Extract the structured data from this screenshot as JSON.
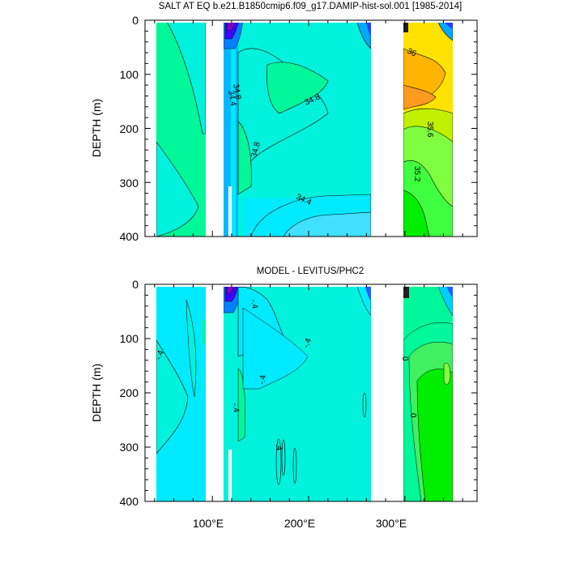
{
  "panels": [
    {
      "title": "SALT AT EQ b.e21.B1850cmip6.f09_g17.DAMIP-hist-sol.001 [1985-2014]",
      "ylabel": "DEPTH (m)"
    },
    {
      "title": "MODEL - LEVITUS/PHC2",
      "ylabel": "DEPTH (m)"
    }
  ],
  "chart_data": [
    {
      "type": "heatmap",
      "title": "SALT AT EQ b.e21.B1850cmip6.f09_g17.DAMIP-hist-sol.001 [1985-2014]",
      "xlabel": "",
      "ylabel": "DEPTH (m)",
      "xlim": [
        30,
        375
      ],
      "ylim": [
        400,
        0
      ],
      "x_ticks": [
        "100°E",
        "200°E",
        "300°E"
      ],
      "y_ticks": [
        "0",
        "100",
        "200",
        "300",
        "400"
      ],
      "contour_labels": [
        "34.4",
        "34.8",
        "34.8",
        "34.8",
        "34.4",
        "36",
        "35.6",
        "35.2"
      ],
      "colors": {
        "background": "#00f2dc",
        "green": "#00f79a",
        "bright_green": "#00ee00",
        "light_green": "#80ff40",
        "cyan": "#00eaff",
        "blue": "#00a8ff",
        "yellow": "#ffe200",
        "orange": "#ffb400",
        "purple": "#8000c8"
      }
    },
    {
      "type": "heatmap",
      "title": "MODEL - LEVITUS/PHC2",
      "xlabel": "",
      "ylabel": "DEPTH (m)",
      "xlim": [
        30,
        375
      ],
      "ylim": [
        400,
        0
      ],
      "x_ticks": [
        "100°E",
        "200°E",
        "300°E"
      ],
      "y_ticks": [
        "0",
        "100",
        "200",
        "300",
        "400"
      ],
      "contour_labels": [
        "-.4",
        "-.4",
        "-.4",
        "-.4",
        "-.4",
        "-.4",
        "0",
        "0"
      ],
      "colors": {
        "background": "#00f2dc",
        "cyan": "#00eaff",
        "green": "#00f79a",
        "bright_green": "#00ee00",
        "blue": "#00a8ff",
        "purple": "#8000c8"
      }
    }
  ]
}
